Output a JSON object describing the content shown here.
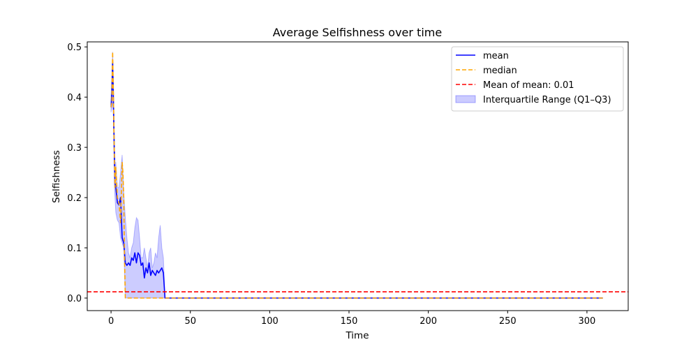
{
  "chart_data": {
    "type": "line",
    "title": "Average Selfishness over time",
    "xlabel": "Time",
    "ylabel": "Selfishness",
    "xlim": [
      -15,
      326
    ],
    "ylim": [
      -0.025,
      0.51
    ],
    "xticks": [
      0,
      50,
      100,
      150,
      200,
      250,
      300
    ],
    "yticks": [
      0.0,
      0.1,
      0.2,
      0.3,
      0.4,
      0.5
    ],
    "xtick_labels": [
      "0",
      "50",
      "100",
      "150",
      "200",
      "250",
      "300"
    ],
    "ytick_labels": [
      "0.0",
      "0.1",
      "0.2",
      "0.3",
      "0.4",
      "0.5"
    ],
    "grid": false,
    "legend_position": "top-right",
    "colors": {
      "mean": "#0000ff",
      "median": "#ffa500",
      "mean_of_mean": "#ff0000",
      "iqr": "#0000ff"
    },
    "legend": [
      {
        "key": "mean",
        "label": "mean"
      },
      {
        "key": "median",
        "label": "median"
      },
      {
        "key": "mean_of_mean",
        "label": "Mean of mean: 0.01"
      },
      {
        "key": "iqr",
        "label": "Interquartile Range (Q1–Q3)"
      }
    ],
    "mean_of_mean": 0.0125,
    "series": [
      {
        "name": "mean",
        "x": [
          0,
          0.5,
          1,
          1.5,
          2,
          2.5,
          3,
          4,
          5,
          6,
          7,
          8,
          9,
          10,
          11,
          12,
          13,
          14,
          15,
          16,
          17,
          18,
          19,
          20,
          21,
          22,
          23,
          24,
          25,
          26,
          27,
          28,
          29,
          30,
          31,
          32,
          33,
          34,
          35,
          40,
          100,
          200,
          310
        ],
        "y": [
          0.38,
          0.41,
          0.47,
          0.39,
          0.3,
          0.23,
          0.22,
          0.19,
          0.185,
          0.2,
          0.12,
          0.11,
          0.07,
          0.065,
          0.07,
          0.065,
          0.08,
          0.075,
          0.09,
          0.07,
          0.09,
          0.085,
          0.065,
          0.07,
          0.04,
          0.06,
          0.05,
          0.07,
          0.045,
          0.055,
          0.05,
          0.045,
          0.055,
          0.05,
          0.055,
          0.06,
          0.05,
          0.0,
          0.0,
          0.0,
          0.0,
          0.0,
          0.0
        ]
      },
      {
        "name": "median",
        "x": [
          0,
          0.5,
          1,
          1.5,
          2,
          2.5,
          3,
          4,
          5,
          6,
          7,
          7.5,
          8,
          8.5,
          9,
          10,
          12,
          20,
          30,
          35,
          40,
          100,
          200,
          310
        ],
        "y": [
          0.38,
          0.39,
          0.49,
          0.4,
          0.3,
          0.22,
          0.26,
          0.2,
          0.19,
          0.15,
          0.27,
          0.25,
          0.2,
          0.08,
          0.0,
          0.0,
          0.0,
          0.0,
          0.0,
          0.0,
          0.0,
          0.0,
          0.0,
          0.0
        ]
      }
    ],
    "iqr": {
      "x": [
        0,
        0.5,
        1,
        1.5,
        2,
        2.5,
        3,
        4,
        5,
        6,
        7,
        8,
        9,
        10,
        11,
        12,
        13,
        14,
        15,
        16,
        17,
        18,
        19,
        20,
        21,
        22,
        23,
        24,
        25,
        26,
        27,
        28,
        29,
        30,
        31,
        32,
        33,
        34,
        35,
        40,
        100,
        200,
        310
      ],
      "upper": [
        0.4,
        0.44,
        0.49,
        0.43,
        0.33,
        0.27,
        0.27,
        0.22,
        0.22,
        0.25,
        0.285,
        0.21,
        0.16,
        0.12,
        0.09,
        0.08,
        0.1,
        0.11,
        0.14,
        0.16,
        0.155,
        0.12,
        0.08,
        0.08,
        0.1,
        0.08,
        0.06,
        0.09,
        0.1,
        0.06,
        0.07,
        0.09,
        0.08,
        0.12,
        0.145,
        0.1,
        0.08,
        0.0,
        0.0,
        0.0,
        0.0,
        0.0,
        0.0
      ],
      "lower": [
        0.37,
        0.38,
        0.39,
        0.36,
        0.23,
        0.2,
        0.17,
        0.155,
        0.15,
        0.12,
        0.11,
        0.1,
        0.0,
        0.0,
        0.0,
        0.0,
        0.0,
        0.0,
        0.0,
        0.0,
        0.0,
        0.0,
        0.0,
        0.0,
        0.0,
        0.0,
        0.0,
        0.0,
        0.0,
        0.0,
        0.0,
        0.0,
        0.0,
        0.0,
        0.0,
        0.0,
        0.0,
        0.0,
        0.0,
        0.0,
        0.0,
        0.0,
        0.0
      ]
    }
  }
}
